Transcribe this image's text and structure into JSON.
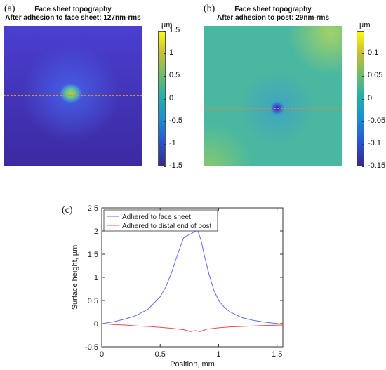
{
  "panel_a": {
    "letter": "(a)",
    "title_line1": "Face sheet topography",
    "title_line2": "After adhesion to face sheet: 127nm-rms",
    "colorbar": {
      "unit": "µm",
      "ticks": [
        "1.5",
        "1",
        "0.5",
        "0",
        "-0.5",
        "-1",
        "-1.5"
      ],
      "min": -1.5,
      "max": 1.5
    },
    "colors": {
      "low": "#3b2aa0",
      "base": "#4a3fd0",
      "peak": "#a8d23a"
    }
  },
  "panel_b": {
    "letter": "(b)",
    "title_line1": "Face sheet topography",
    "title_line2": "After adhesion to post: 29nm-rms",
    "colorbar": {
      "unit": "µm",
      "ticks": [
        "0.1",
        "0.05",
        "0",
        "-0.05",
        "-0.1",
        "-0.15"
      ],
      "min": -0.15,
      "max": 0.15
    },
    "colors": {
      "base": "#4ab8a0",
      "dip": "#3a20a0"
    }
  },
  "panel_c": {
    "letter": "(c)"
  },
  "chart_data": {
    "type": "line",
    "xlabel": "Position, mm",
    "ylabel": "Surface height, µm",
    "xlim": [
      0,
      1.55
    ],
    "ylim": [
      -0.5,
      2.5
    ],
    "xticks": [
      "0",
      "0.5",
      "1",
      "1.5"
    ],
    "yticks": [
      "-0.5",
      "0",
      "0.5",
      "1",
      "1.5",
      "2",
      "2.5"
    ],
    "legend": "top-left",
    "series": [
      {
        "name": "Adhered to face sheet",
        "color": "#5b6ee8",
        "x": [
          0,
          0.1,
          0.2,
          0.3,
          0.4,
          0.5,
          0.55,
          0.6,
          0.65,
          0.7,
          0.73,
          0.76,
          0.79,
          0.82,
          0.85,
          0.88,
          0.92,
          0.96,
          1.0,
          1.05,
          1.1,
          1.2,
          1.3,
          1.4,
          1.55
        ],
        "y": [
          0,
          0.04,
          0.1,
          0.18,
          0.32,
          0.58,
          0.8,
          1.12,
          1.5,
          1.85,
          1.9,
          1.93,
          1.98,
          2.02,
          1.8,
          1.45,
          1.05,
          0.72,
          0.5,
          0.35,
          0.25,
          0.13,
          0.07,
          0.03,
          -0.01
        ]
      },
      {
        "name": "Adhered to distal end of post",
        "color": "#e05050",
        "x": [
          0,
          0.1,
          0.2,
          0.3,
          0.4,
          0.5,
          0.6,
          0.7,
          0.76,
          0.8,
          0.84,
          0.9,
          1.0,
          1.1,
          1.2,
          1.3,
          1.4,
          1.55
        ],
        "y": [
          0,
          -0.02,
          -0.03,
          -0.05,
          -0.06,
          -0.08,
          -0.1,
          -0.13,
          -0.17,
          -0.15,
          -0.17,
          -0.12,
          -0.09,
          -0.07,
          -0.06,
          -0.05,
          -0.04,
          -0.03
        ]
      }
    ]
  }
}
